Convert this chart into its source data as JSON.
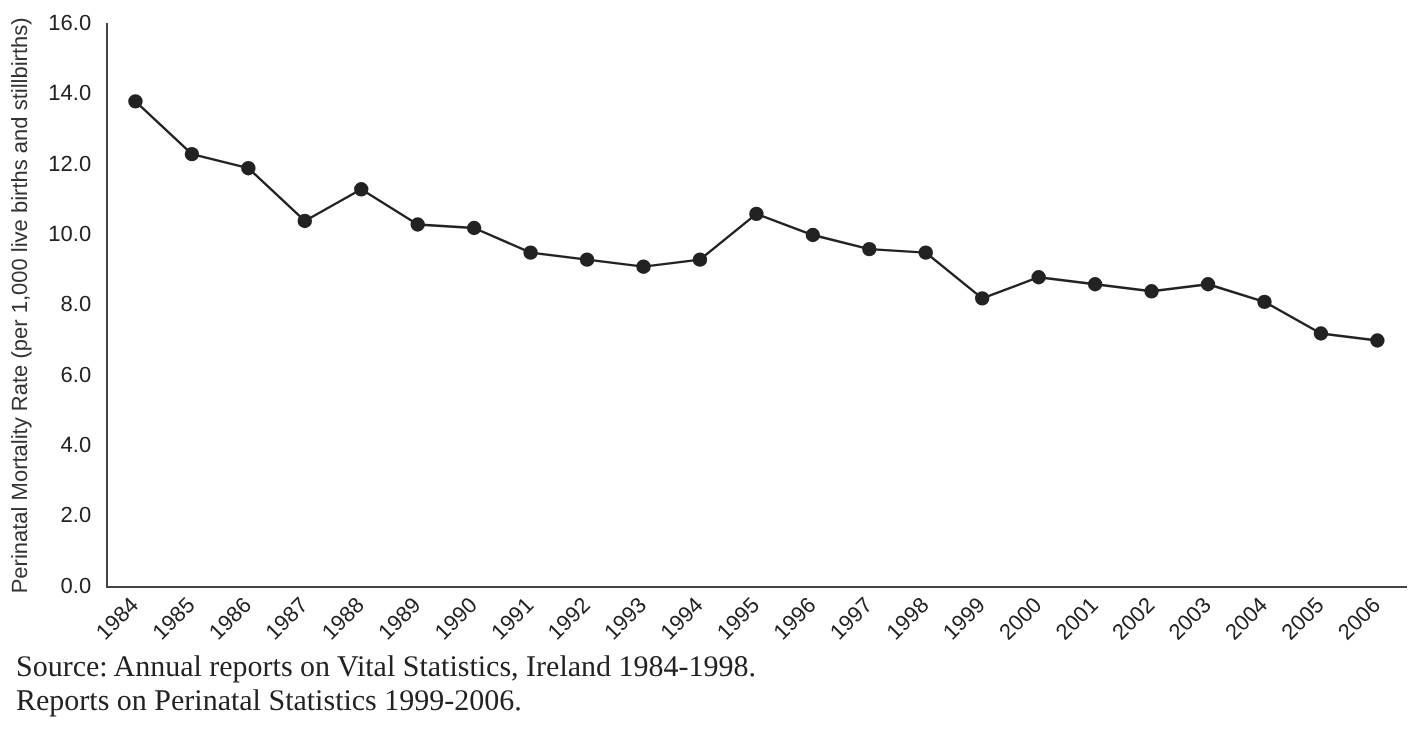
{
  "chart_data": {
    "type": "line",
    "ylabel": "Perinatal Mortality Rate (per 1,000 live births and stillbirths)",
    "categories": [
      "1984",
      "1985",
      "1986",
      "1987",
      "1988",
      "1989",
      "1990",
      "1991",
      "1992",
      "1993",
      "1994",
      "1995",
      "1996",
      "1997",
      "1998",
      "1999",
      "2000",
      "2001",
      "2002",
      "2003",
      "2004",
      "2005",
      "2006"
    ],
    "series": [
      {
        "color": "#222222",
        "values": [
          13.8,
          12.3,
          11.9,
          10.4,
          11.3,
          10.3,
          10.2,
          9.5,
          9.3,
          9.1,
          9.3,
          10.6,
          10.0,
          9.6,
          9.5,
          8.2,
          8.8,
          8.6,
          8.4,
          8.6,
          8.1,
          7.2,
          7.0
        ]
      }
    ],
    "ylim": [
      0,
      16
    ],
    "yticks": [
      {
        "value": 0,
        "label": "0.0"
      },
      {
        "value": 2,
        "label": "2.0"
      },
      {
        "value": 4,
        "label": "4.0"
      },
      {
        "value": 6,
        "label": "6.0"
      },
      {
        "value": 8,
        "label": "8.0"
      },
      {
        "value": 10,
        "label": "10.0"
      },
      {
        "value": 12,
        "label": "12.0"
      },
      {
        "value": 14,
        "label": "14.0"
      },
      {
        "value": 16,
        "label": "16.0"
      }
    ],
    "grid": false,
    "legend": false,
    "marker": "circle",
    "line_style": "solid",
    "annotations": [
      "Source: Annual reports on Vital Statistics, Ireland 1984-1998.",
      "Reports on Perinatal Statistics 1999-2006."
    ]
  }
}
